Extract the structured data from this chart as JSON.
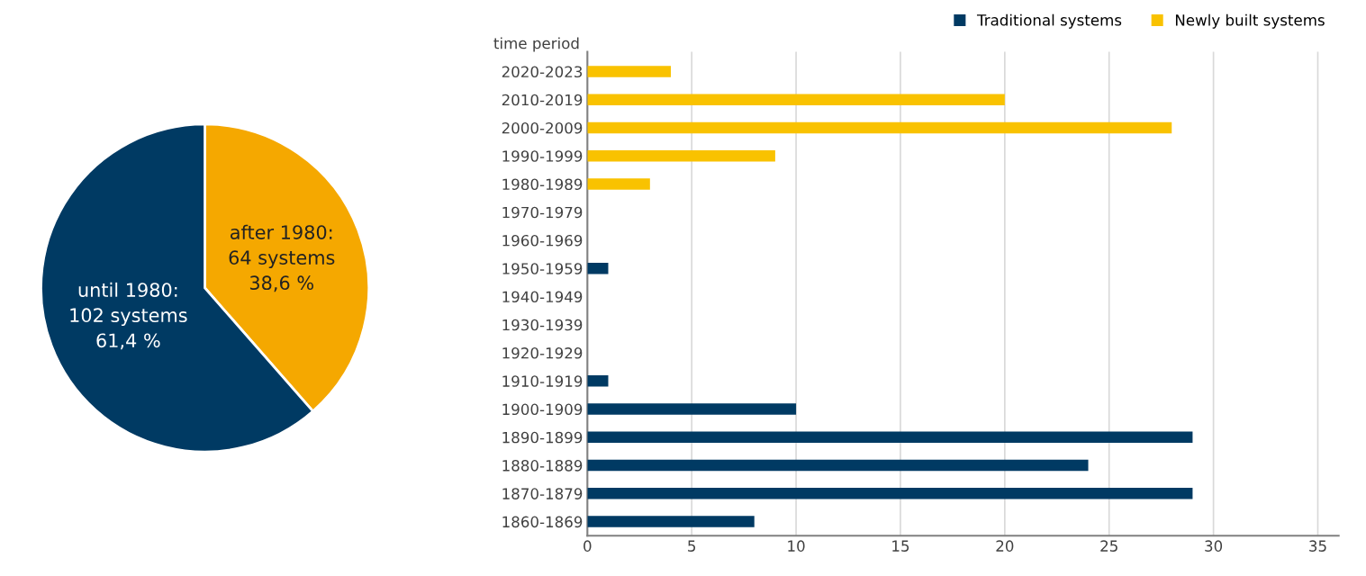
{
  "chart_data": [
    {
      "type": "pie",
      "categories": [
        "after 1980:\n64 systems\n38,6 %",
        "until 1980:\n102 systems\n61,4 %"
      ],
      "values": [
        64,
        102
      ],
      "colors": [
        "#f5a800",
        "#003a63"
      ]
    },
    {
      "type": "bar",
      "orientation": "horizontal",
      "stacked": true,
      "ylabel": "time period",
      "categories": [
        "2020-2023",
        "2010-2019",
        "2000-2009",
        "1990-1999",
        "1980-1989",
        "1970-1979",
        "1960-1969",
        "1950-1959",
        "1940-1949",
        "1930-1939",
        "1920-1929",
        "1910-1919",
        "1900-1909",
        "1890-1899",
        "1880-1889",
        "1870-1879",
        "1860-1869"
      ],
      "series": [
        {
          "name": "Traditional systems",
          "color": "#003a63",
          "values": [
            null,
            null,
            null,
            null,
            null,
            null,
            null,
            1,
            null,
            null,
            null,
            1,
            10,
            29,
            24,
            29,
            8
          ]
        },
        {
          "name": "Newly built systems",
          "color": "#f9c200",
          "values": [
            4,
            20,
            28,
            9,
            3,
            null,
            null,
            null,
            null,
            null,
            null,
            null,
            null,
            null,
            null,
            null,
            null
          ]
        }
      ],
      "xlim": [
        0,
        36
      ],
      "xticks": [
        0,
        5,
        10,
        15,
        20,
        25,
        30,
        35
      ],
      "grid": "x",
      "legend": "top right"
    }
  ]
}
